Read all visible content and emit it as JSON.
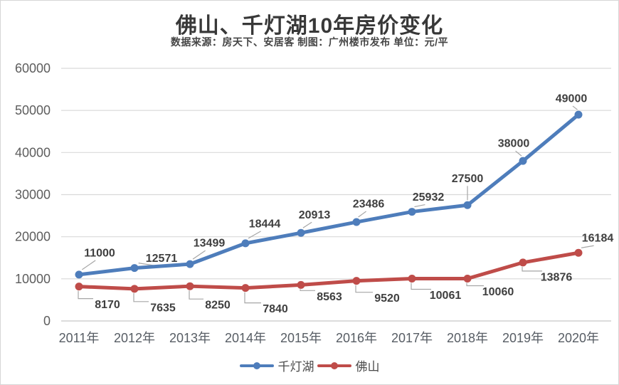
{
  "title": "佛山、千灯湖10年房价变化",
  "subtitle": "数据来源：房天下、安居客  制图：广州楼市发布  单位：元/平",
  "unit": "元/平",
  "colors": {
    "series_blue": "#4e7dbb",
    "series_red": "#bf4c49",
    "gridline": "#d9d9d9",
    "axis_line": "#c8c8c8",
    "leader_line": "#a6a6a6",
    "axis_text": "#5d5d5d",
    "data_label_text": "#3f3f3f"
  },
  "chart_data": {
    "type": "line",
    "title": "佛山、千灯湖10年房价变化",
    "categories": [
      "2011年",
      "2012年",
      "2013年",
      "2014年",
      "2015年",
      "2016年",
      "2017年",
      "2018年",
      "2019年",
      "2020年"
    ],
    "series": [
      {
        "name": "千灯湖",
        "color": "#4e7dbb",
        "values": [
          11000,
          12571,
          13499,
          18444,
          20913,
          23486,
          25932,
          27500,
          38000,
          49000
        ]
      },
      {
        "name": "佛山",
        "color": "#bf4c49",
        "values": [
          8170,
          7635,
          8250,
          7840,
          8563,
          9520,
          10061,
          10060,
          13876,
          16184
        ]
      }
    ],
    "ylim": [
      0,
      60000
    ],
    "yticks": [
      0,
      10000,
      20000,
      30000,
      40000,
      50000,
      60000
    ],
    "grid": "horizontal",
    "data_labels": true,
    "legend_position": "bottom",
    "xlabel": "",
    "ylabel": "",
    "unit": "元/平"
  }
}
